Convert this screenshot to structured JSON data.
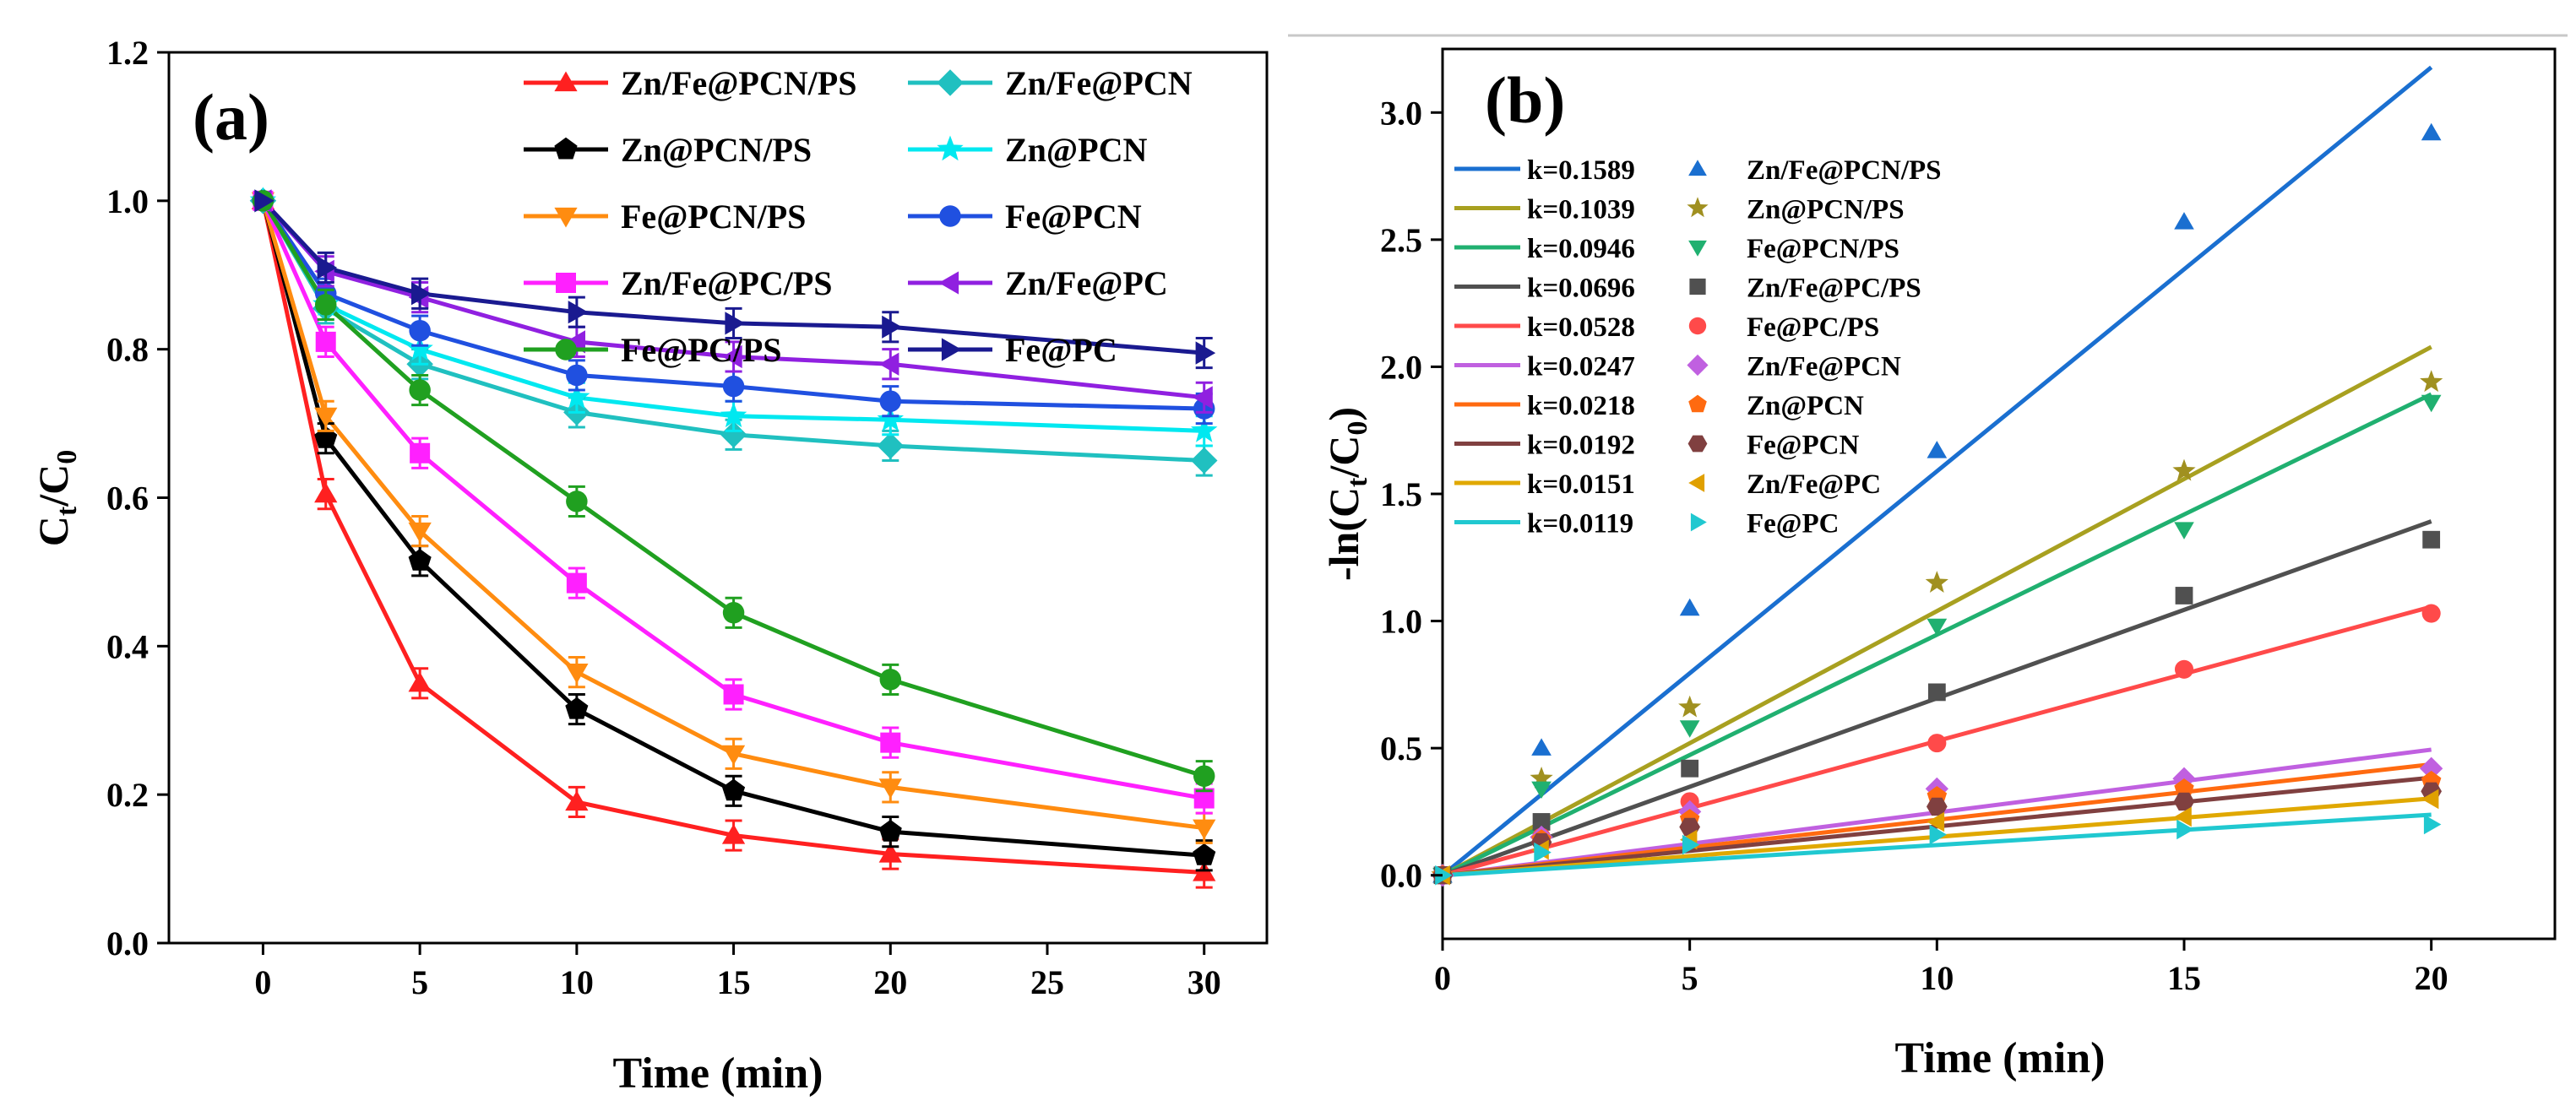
{
  "chart_data": [
    {
      "panel_label": "(a)",
      "type": "line",
      "xlabel": "Time (min)",
      "ylabel_main": "C",
      "ylabel_sub1": "t",
      "ylabel_slash": "/C",
      "ylabel_sub2": "0",
      "xlim": [
        -3,
        32
      ],
      "ylim": [
        0,
        1.2
      ],
      "xticks": [
        0,
        5,
        10,
        15,
        20,
        25,
        30
      ],
      "yticks": [
        0.0,
        0.2,
        0.4,
        0.6,
        0.8,
        1.0,
        1.2
      ],
      "x": [
        0,
        2,
        5,
        10,
        15,
        20,
        30
      ],
      "legend_position": "top-right",
      "series": [
        {
          "name": "Zn/Fe@PCN/PS",
          "color": "#ff2020",
          "marker": "triangle-up",
          "values": [
            1.0,
            0.605,
            0.35,
            0.19,
            0.145,
            0.12,
            0.095
          ]
        },
        {
          "name": "Zn/Fe@PCN",
          "color": "#20c0c0",
          "marker": "diamond",
          "values": [
            1.0,
            0.855,
            0.78,
            0.715,
            0.685,
            0.67,
            0.65
          ]
        },
        {
          "name": "Zn@PCN/PS",
          "color": "#000000",
          "marker": "pentagon",
          "values": [
            1.0,
            0.68,
            0.515,
            0.315,
            0.205,
            0.15,
            0.118
          ]
        },
        {
          "name": "Zn@PCN",
          "color": "#00e8f0",
          "marker": "star",
          "values": [
            1.0,
            0.86,
            0.8,
            0.735,
            0.71,
            0.705,
            0.69
          ]
        },
        {
          "name": "Fe@PCN/PS",
          "color": "#ff8c10",
          "marker": "triangle-down",
          "values": [
            1.0,
            0.71,
            0.555,
            0.365,
            0.255,
            0.21,
            0.155
          ]
        },
        {
          "name": "Fe@PCN",
          "color": "#2050e0",
          "marker": "circle",
          "values": [
            1.0,
            0.875,
            0.825,
            0.765,
            0.75,
            0.73,
            0.72
          ]
        },
        {
          "name": "Zn/Fe@PC/PS",
          "color": "#ff20ff",
          "marker": "square",
          "values": [
            1.0,
            0.81,
            0.66,
            0.485,
            0.335,
            0.27,
            0.195
          ]
        },
        {
          "name": "Zn/Fe@PC",
          "color": "#9020e0",
          "marker": "triangle-left",
          "values": [
            1.0,
            0.905,
            0.87,
            0.81,
            0.79,
            0.78,
            0.735
          ]
        },
        {
          "name": "Fe@PC/PS",
          "color": "#20a020",
          "marker": "circle",
          "values": [
            1.0,
            0.86,
            0.745,
            0.595,
            0.445,
            0.355,
            0.225
          ]
        },
        {
          "name": "Fe@PC",
          "color": "#1a1a90",
          "marker": "triangle-right",
          "values": [
            1.0,
            0.91,
            0.875,
            0.85,
            0.835,
            0.83,
            0.795
          ]
        }
      ]
    },
    {
      "panel_label": "(b)",
      "type": "scatter",
      "xlabel": "Time (min)",
      "ylabel_pre": "-ln(C",
      "ylabel_sub1": "t",
      "ylabel_mid": "/C",
      "ylabel_sub2": "0",
      "ylabel_post": ")",
      "xlim": [
        0,
        22.5
      ],
      "ylim": [
        -0.25,
        3.25
      ],
      "xticks": [
        0,
        5,
        10,
        15,
        20
      ],
      "yticks": [
        0.0,
        0.5,
        1.0,
        1.5,
        2.0,
        2.5,
        3.0
      ],
      "x": [
        0,
        2,
        5,
        10,
        15,
        20
      ],
      "legend_position": "top-left",
      "fits": [
        {
          "label": "k=0.1589",
          "k": 0.1589,
          "color": "#1a6fd0"
        },
        {
          "label": "k=0.1039",
          "k": 0.1039,
          "color": "#a8a020"
        },
        {
          "label": "k=0.0946",
          "k": 0.0946,
          "color": "#20b070"
        },
        {
          "label": "k=0.0696",
          "k": 0.0696,
          "color": "#505050"
        },
        {
          "label": "k=0.0528",
          "k": 0.0528,
          "color": "#ff4a4a"
        },
        {
          "label": "k=0.0247",
          "k": 0.0247,
          "color": "#c060e0"
        },
        {
          "label": "k=0.0218",
          "k": 0.0218,
          "color": "#ff6a10"
        },
        {
          "label": "k=0.0192",
          "k": 0.0192,
          "color": "#804040"
        },
        {
          "label": "k=0.0151",
          "k": 0.0151,
          "color": "#e0a800"
        },
        {
          "label": "k=0.0119",
          "k": 0.0119,
          "color": "#20c8d0"
        }
      ],
      "series": [
        {
          "name": "Zn/Fe@PCN/PS",
          "color": "#1a6fd0",
          "marker": "triangle-up",
          "values": [
            0,
            0.5,
            1.05,
            1.67,
            2.57,
            2.92
          ]
        },
        {
          "name": "Zn@PCN/PS",
          "color": "#a09020",
          "marker": "star",
          "values": [
            0,
            0.38,
            0.66,
            1.15,
            1.59,
            1.94
          ]
        },
        {
          "name": "Fe@PCN/PS",
          "color": "#20b070",
          "marker": "triangle-down",
          "values": [
            0,
            0.34,
            0.58,
            0.98,
            1.36,
            1.86
          ]
        },
        {
          "name": "Zn/Fe@PC/PS",
          "color": "#505050",
          "marker": "square",
          "values": [
            0,
            0.21,
            0.42,
            0.72,
            1.1,
            1.32
          ]
        },
        {
          "name": "Fe@PC/PS",
          "color": "#ff4a4a",
          "marker": "circle",
          "values": [
            0,
            0.15,
            0.29,
            0.52,
            0.81,
            1.03
          ]
        },
        {
          "name": "Zn/Fe@PCN",
          "color": "#c060e0",
          "marker": "diamond",
          "values": [
            0,
            0.15,
            0.25,
            0.34,
            0.38,
            0.42
          ]
        },
        {
          "name": "Zn@PCN",
          "color": "#ff6a10",
          "marker": "pentagon",
          "values": [
            0,
            0.14,
            0.22,
            0.31,
            0.34,
            0.37
          ]
        },
        {
          "name": "Fe@PCN",
          "color": "#804040",
          "marker": "hexagon",
          "values": [
            0,
            0.13,
            0.19,
            0.27,
            0.29,
            0.33
          ]
        },
        {
          "name": "Zn/Fe@PC",
          "color": "#e0a000",
          "marker": "triangle-left",
          "values": [
            0,
            0.1,
            0.14,
            0.21,
            0.23,
            0.3
          ]
        },
        {
          "name": "Fe@PC",
          "color": "#20c8d0",
          "marker": "triangle-right",
          "values": [
            0,
            0.09,
            0.12,
            0.16,
            0.18,
            0.2
          ]
        }
      ]
    }
  ]
}
